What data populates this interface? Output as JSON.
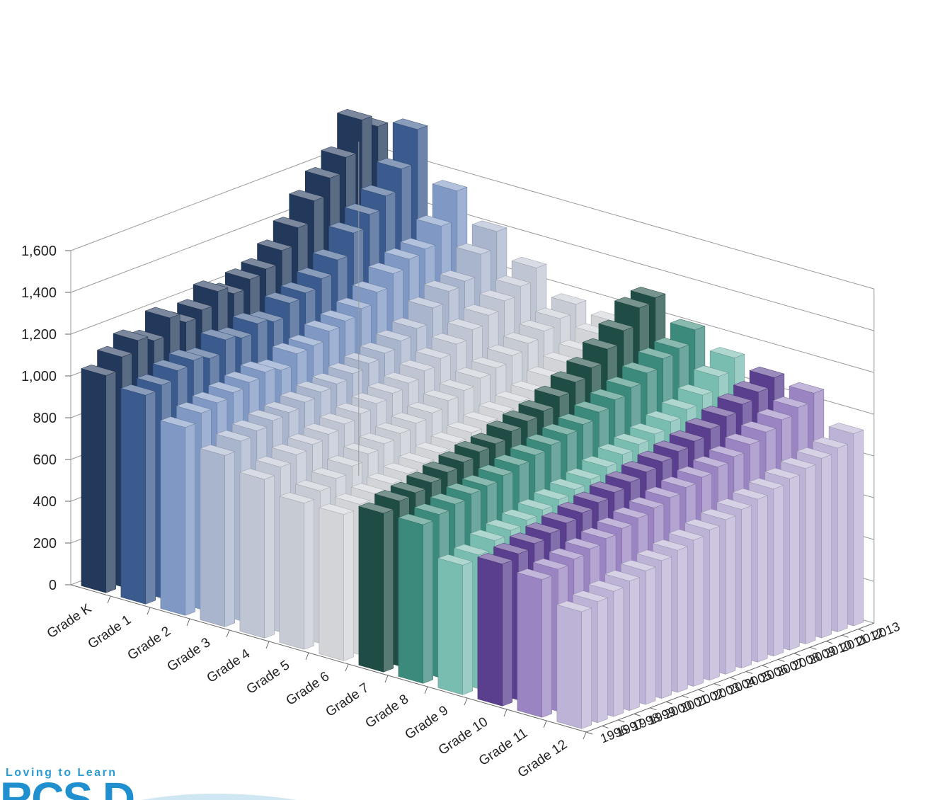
{
  "chart_data": {
    "type": "bar",
    "subtype": "3d-grouped-by-depth",
    "y_ticks": [
      "0",
      "200",
      "400",
      "600",
      "800",
      "1,000",
      "1,200",
      "1,400",
      "1,600"
    ],
    "ylim": [
      0,
      1600
    ],
    "grid": true,
    "categories": [
      "Grade K",
      "Grade 1",
      "Grade 2",
      "Grade 3",
      "Grade 4",
      "Grade 5",
      "Grade 6",
      "Grade 7",
      "Grade 8",
      "Grade 9",
      "Grade 10",
      "Grade 11",
      "Grade 12"
    ],
    "years": [
      "1996",
      "1997",
      "1998",
      "1999",
      "2000",
      "2001",
      "2002",
      "2003",
      "2004",
      "2005",
      "2006",
      "2007",
      "2008",
      "2009",
      "2010",
      "2011",
      "2012",
      "2013"
    ],
    "values": [
      [
        1040,
        1100,
        1150,
        1120,
        1200,
        1150,
        1180,
        1240,
        1200,
        1240,
        1260,
        1320,
        1400,
        1500,
        1580,
        1650,
        1800,
        1740
      ],
      [
        1000,
        1020,
        1060,
        1080,
        1060,
        1120,
        1100,
        1140,
        1120,
        1180,
        1200,
        1240,
        1300,
        1400,
        1460,
        1520,
        1620,
        1780
      ],
      [
        900,
        940,
        960,
        980,
        1000,
        1020,
        1000,
        1050,
        1060,
        1100,
        1120,
        1150,
        1200,
        1260,
        1300,
        1320,
        1400,
        1540
      ],
      [
        820,
        860,
        880,
        900,
        910,
        930,
        950,
        960,
        980,
        1000,
        1020,
        1050,
        1080,
        1150,
        1200,
        1220,
        1320,
        1400
      ],
      [
        760,
        790,
        820,
        840,
        860,
        880,
        900,
        920,
        940,
        960,
        990,
        1020,
        1060,
        1100,
        1140,
        1180,
        1220,
        1280
      ],
      [
        700,
        730,
        760,
        790,
        820,
        840,
        860,
        880,
        900,
        930,
        950,
        980,
        1000,
        1030,
        1060,
        1090,
        1120,
        1160
      ],
      [
        700,
        720,
        740,
        760,
        780,
        800,
        820,
        840,
        860,
        880,
        900,
        920,
        940,
        980,
        1020,
        1050,
        1100,
        1130
      ],
      [
        760,
        790,
        800,
        820,
        840,
        860,
        880,
        890,
        920,
        940,
        960,
        1000,
        1040,
        1080,
        1140,
        1200,
        1280,
        1300
      ],
      [
        760,
        780,
        800,
        820,
        830,
        850,
        870,
        890,
        910,
        930,
        950,
        980,
        1010,
        1040,
        1080,
        1120,
        1140,
        1200
      ],
      [
        620,
        640,
        680,
        700,
        720,
        740,
        760,
        780,
        800,
        830,
        860,
        880,
        900,
        930,
        960,
        1000,
        1060,
        1120
      ],
      [
        680,
        700,
        720,
        740,
        760,
        780,
        800,
        820,
        840,
        860,
        880,
        900,
        920,
        950,
        980,
        1010,
        1040,
        1080
      ],
      [
        660,
        680,
        700,
        720,
        740,
        760,
        780,
        800,
        820,
        840,
        860,
        880,
        900,
        930,
        960,
        990,
        1020,
        1060
      ],
      [
        560,
        580,
        600,
        620,
        640,
        660,
        680,
        700,
        720,
        740,
        760,
        780,
        800,
        820,
        840,
        860,
        880,
        920
      ]
    ],
    "colors": [
      "#23395b",
      "#3b5b8e",
      "#7f98c4",
      "#a9b4cd",
      "#bfc5d3",
      "#c7cbd3",
      "#d2d4d8",
      "#1f4d45",
      "#3c8a7c",
      "#79bcb0",
      "#5a3f8f",
      "#9a85c2",
      "#bdb3d6"
    ]
  },
  "logo": {
    "tagline": "Loving to Learn",
    "mark": "RCS D"
  }
}
